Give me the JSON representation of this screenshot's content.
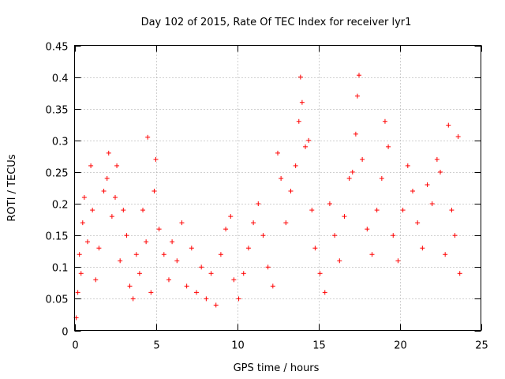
{
  "chart_data": {
    "type": "scatter",
    "title": "Day 102 of 2015, Rate Of TEC Index for receiver lyr1",
    "xlabel": "GPS time / hours",
    "ylabel": "ROTI / TECUs",
    "xlim": [
      0,
      25
    ],
    "ylim": [
      0,
      0.45
    ],
    "xticks": [
      0,
      5,
      10,
      15,
      20,
      25
    ],
    "yticks": [
      0,
      0.05,
      0.1,
      0.15,
      0.2,
      0.25,
      0.3,
      0.35,
      0.4,
      0.45
    ],
    "grid": true,
    "marker": "+",
    "color": "#ff0000",
    "series": [
      {
        "name": "ROTI",
        "points": [
          [
            0.1,
            0.02
          ],
          [
            0.2,
            0.06
          ],
          [
            0.3,
            0.12
          ],
          [
            0.4,
            0.09
          ],
          [
            0.5,
            0.17
          ],
          [
            0.6,
            0.21
          ],
          [
            0.8,
            0.14
          ],
          [
            1.0,
            0.26
          ],
          [
            1.1,
            0.19
          ],
          [
            1.3,
            0.08
          ],
          [
            1.5,
            0.13
          ],
          [
            1.8,
            0.22
          ],
          [
            2.0,
            0.24
          ],
          [
            2.1,
            0.28
          ],
          [
            2.3,
            0.18
          ],
          [
            2.5,
            0.21
          ],
          [
            2.6,
            0.26
          ],
          [
            2.8,
            0.11
          ],
          [
            3.0,
            0.19
          ],
          [
            3.2,
            0.15
          ],
          [
            3.4,
            0.07
          ],
          [
            3.6,
            0.05
          ],
          [
            3.8,
            0.12
          ],
          [
            4.0,
            0.09
          ],
          [
            4.2,
            0.19
          ],
          [
            4.4,
            0.14
          ],
          [
            4.5,
            0.305
          ],
          [
            4.7,
            0.06
          ],
          [
            4.9,
            0.22
          ],
          [
            5.0,
            0.27
          ],
          [
            5.2,
            0.16
          ],
          [
            5.5,
            0.12
          ],
          [
            5.8,
            0.08
          ],
          [
            6.0,
            0.14
          ],
          [
            6.3,
            0.11
          ],
          [
            6.6,
            0.17
          ],
          [
            6.9,
            0.07
          ],
          [
            7.2,
            0.13
          ],
          [
            7.5,
            0.06
          ],
          [
            7.8,
            0.1
          ],
          [
            8.1,
            0.05
          ],
          [
            8.4,
            0.09
          ],
          [
            8.7,
            0.04
          ],
          [
            9.0,
            0.12
          ],
          [
            9.3,
            0.16
          ],
          [
            9.6,
            0.18
          ],
          [
            9.8,
            0.08
          ],
          [
            10.1,
            0.05
          ],
          [
            10.4,
            0.09
          ],
          [
            10.7,
            0.13
          ],
          [
            11.0,
            0.17
          ],
          [
            11.3,
            0.2
          ],
          [
            11.6,
            0.15
          ],
          [
            11.9,
            0.1
          ],
          [
            12.2,
            0.07
          ],
          [
            12.5,
            0.28
          ],
          [
            12.7,
            0.24
          ],
          [
            13.0,
            0.17
          ],
          [
            13.3,
            0.22
          ],
          [
            13.6,
            0.26
          ],
          [
            13.8,
            0.33
          ],
          [
            13.9,
            0.4
          ],
          [
            14.0,
            0.36
          ],
          [
            14.2,
            0.29
          ],
          [
            14.4,
            0.3
          ],
          [
            14.6,
            0.19
          ],
          [
            14.8,
            0.13
          ],
          [
            15.1,
            0.09
          ],
          [
            15.4,
            0.06
          ],
          [
            15.7,
            0.2
          ],
          [
            16.0,
            0.15
          ],
          [
            16.3,
            0.11
          ],
          [
            16.6,
            0.18
          ],
          [
            16.9,
            0.24
          ],
          [
            17.1,
            0.25
          ],
          [
            17.3,
            0.31
          ],
          [
            17.4,
            0.37
          ],
          [
            17.5,
            0.403
          ],
          [
            17.7,
            0.27
          ],
          [
            18.0,
            0.16
          ],
          [
            18.3,
            0.12
          ],
          [
            18.6,
            0.19
          ],
          [
            18.9,
            0.24
          ],
          [
            19.1,
            0.33
          ],
          [
            19.3,
            0.29
          ],
          [
            19.6,
            0.15
          ],
          [
            19.9,
            0.11
          ],
          [
            20.2,
            0.19
          ],
          [
            20.5,
            0.26
          ],
          [
            20.8,
            0.22
          ],
          [
            21.1,
            0.17
          ],
          [
            21.4,
            0.13
          ],
          [
            21.7,
            0.23
          ],
          [
            22.0,
            0.2
          ],
          [
            22.3,
            0.27
          ],
          [
            22.5,
            0.25
          ],
          [
            22.8,
            0.12
          ],
          [
            23.0,
            0.324
          ],
          [
            23.2,
            0.19
          ],
          [
            23.4,
            0.15
          ],
          [
            23.6,
            0.306
          ],
          [
            23.7,
            0.09
          ]
        ]
      }
    ]
  }
}
